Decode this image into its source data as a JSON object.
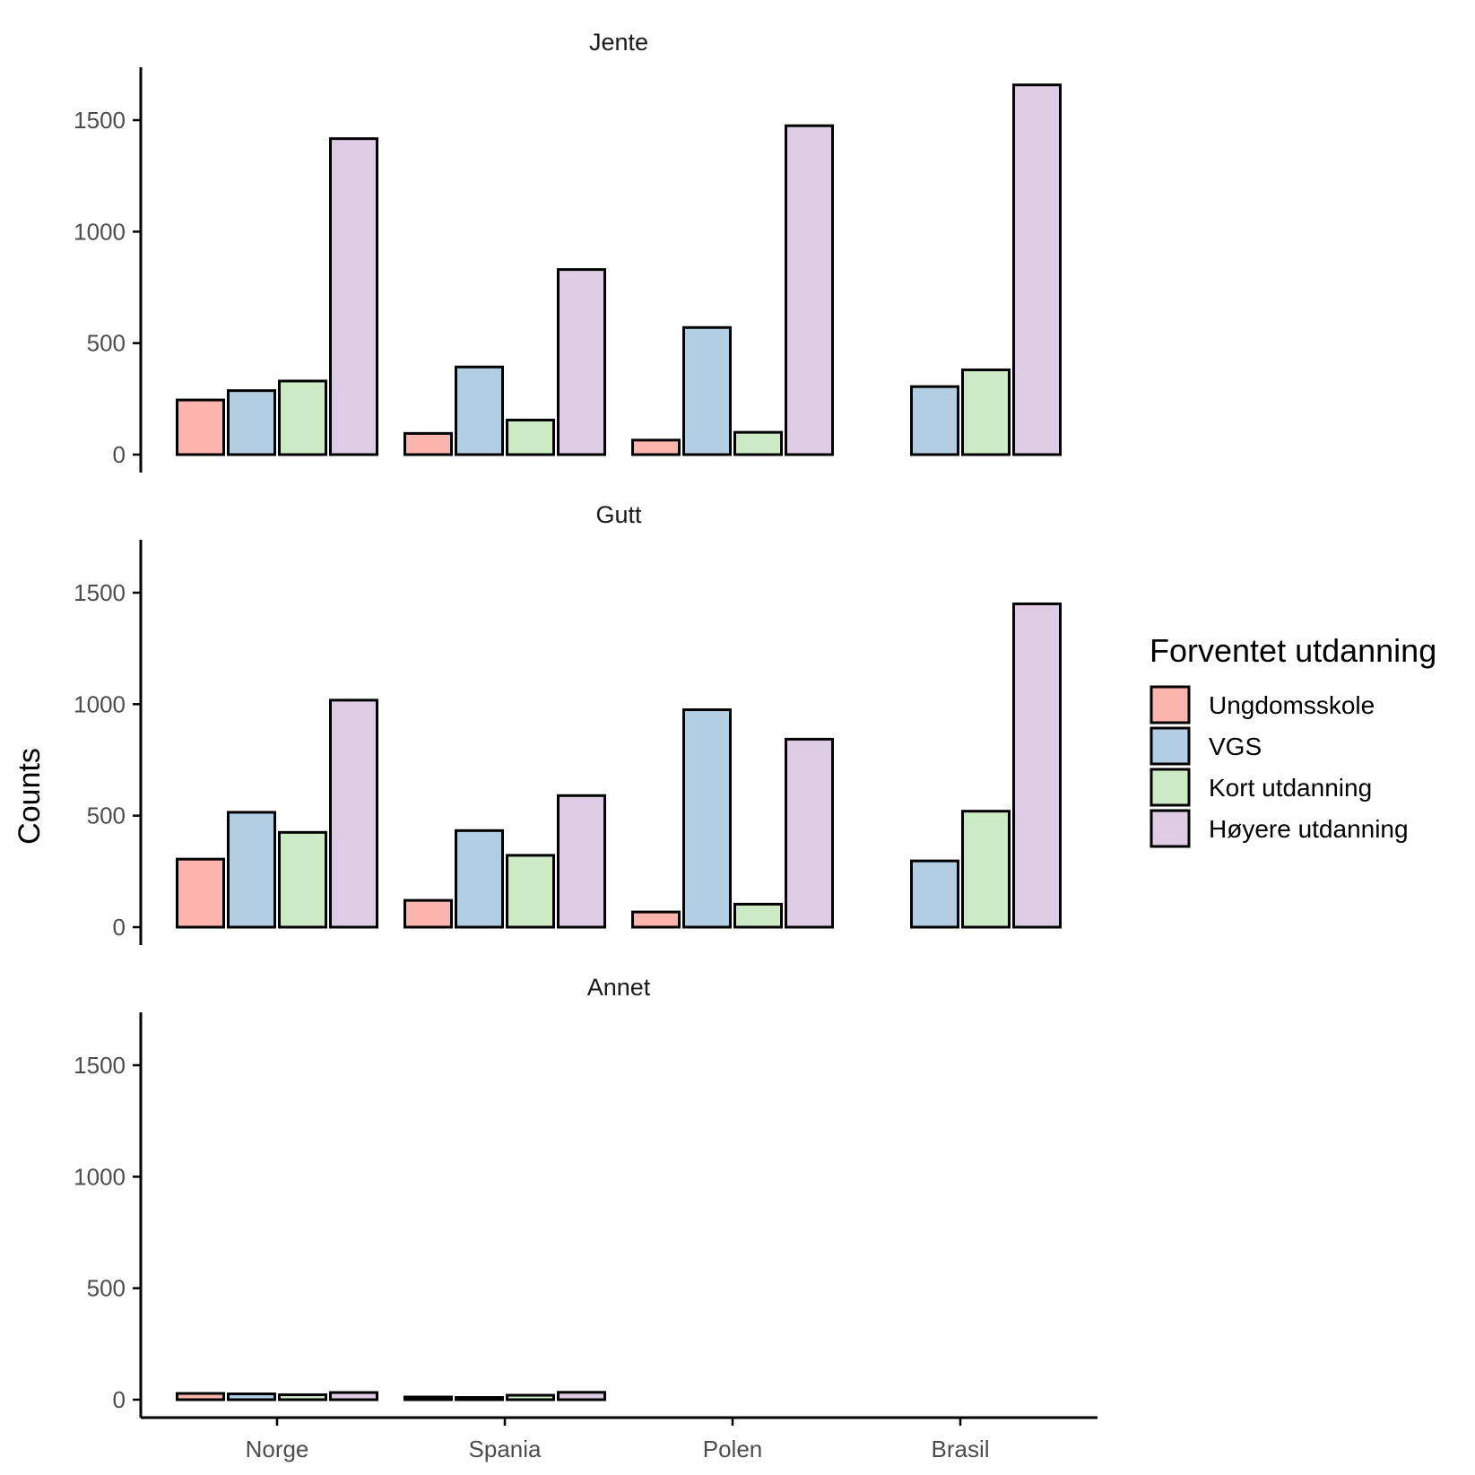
{
  "chart_data": {
    "type": "bar",
    "ylabel": "Counts",
    "xlabel": "",
    "ylim": [
      0,
      1700
    ],
    "yticks": [
      0,
      500,
      1000,
      1500
    ],
    "categories": [
      "Norge",
      "Spania",
      "Polen",
      "Brasil"
    ],
    "legend": {
      "title": "Forventet utdanning",
      "placement": "right",
      "items": [
        {
          "name": "Ungdomsskole",
          "color": "#FBB4AE"
        },
        {
          "name": "VGS",
          "color": "#B3CDE3"
        },
        {
          "name": "Kort utdanning",
          "color": "#CCEBC5"
        },
        {
          "name": "Høyere utdanning",
          "color": "#DECBE4"
        }
      ]
    },
    "panels": [
      {
        "title": "Jente",
        "series": [
          {
            "name": "Ungdomsskole",
            "values": [
              245,
              95,
              65,
              null
            ]
          },
          {
            "name": "VGS",
            "values": [
              287,
              393,
              570,
              305
            ]
          },
          {
            "name": "Kort utdanning",
            "values": [
              330,
              155,
              100,
              380
            ]
          },
          {
            "name": "Høyere utdanning",
            "values": [
              1417,
              830,
              1475,
              1658
            ]
          }
        ]
      },
      {
        "title": "Gutt",
        "series": [
          {
            "name": "Ungdomsskole",
            "values": [
              305,
              120,
              68,
              null
            ]
          },
          {
            "name": "VGS",
            "values": [
              515,
              433,
              975,
              297
            ]
          },
          {
            "name": "Kort utdanning",
            "values": [
              425,
              322,
              103,
              520
            ]
          },
          {
            "name": "Høyere utdanning",
            "values": [
              1018,
              590,
              843,
              1450
            ]
          }
        ]
      },
      {
        "title": "Annet",
        "series": [
          {
            "name": "Ungdomsskole",
            "values": [
              28,
              12,
              null,
              null
            ]
          },
          {
            "name": "VGS",
            "values": [
              26,
              10,
              null,
              null
            ]
          },
          {
            "name": "Kort utdanning",
            "values": [
              22,
              20,
              null,
              null
            ]
          },
          {
            "name": "Høyere utdanning",
            "values": [
              32,
              33,
              null,
              null
            ]
          }
        ]
      }
    ]
  }
}
